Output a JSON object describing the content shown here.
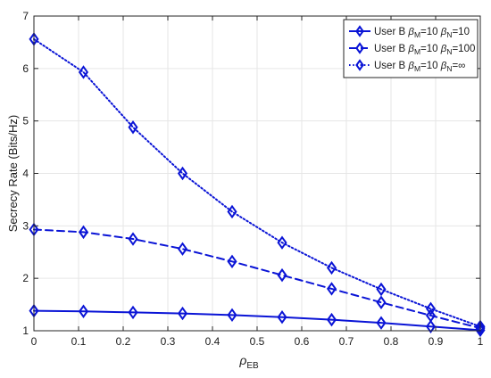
{
  "chart_data": {
    "type": "line",
    "xlabel_main": "ρ",
    "xlabel_sub": "EB",
    "ylabel": "Secrecy Rate (Bits/Hz)",
    "xlim": [
      0,
      1
    ],
    "ylim": [
      1,
      7
    ],
    "grid": true,
    "legend_position": "top-right",
    "x_ticks": [
      "0",
      "0.1",
      "0.2",
      "0.3",
      "0.4",
      "0.5",
      "0.6",
      "0.7",
      "0.8",
      "0.9",
      "1"
    ],
    "y_ticks": [
      "1",
      "2",
      "3",
      "4",
      "5",
      "6",
      "7"
    ],
    "x": [
      0,
      0.111,
      0.222,
      0.333,
      0.444,
      0.556,
      0.667,
      0.778,
      0.889,
      1.0
    ],
    "series": [
      {
        "name_user": "User B",
        "name_beta_m": "β",
        "name_beta_m_sub": "M",
        "name_beta_m_value": "=10",
        "name_beta_n": "β",
        "name_beta_n_sub": "N",
        "name_beta_n_value": "=10",
        "color": "#0a14d6",
        "style": "solid",
        "marker": "diamond",
        "values": [
          1.38,
          1.37,
          1.35,
          1.33,
          1.3,
          1.26,
          1.21,
          1.15,
          1.08,
          1.01
        ]
      },
      {
        "name_user": "User B",
        "name_beta_m": "β",
        "name_beta_m_sub": "M",
        "name_beta_m_value": "=10",
        "name_beta_n": "β",
        "name_beta_n_sub": "N",
        "name_beta_n_value": "=100",
        "color": "#0a14d6",
        "style": "dashed",
        "marker": "diamond",
        "values": [
          2.93,
          2.88,
          2.75,
          2.56,
          2.32,
          2.06,
          1.8,
          1.54,
          1.29,
          1.05
        ]
      },
      {
        "name_user": "User B",
        "name_beta_m": "β",
        "name_beta_m_sub": "M",
        "name_beta_m_value": "=10",
        "name_beta_n": "β",
        "name_beta_n_sub": "N",
        "name_beta_n_value": "=∞",
        "color": "#0a14d6",
        "style": "dotted",
        "marker": "diamond",
        "values": [
          6.56,
          5.93,
          4.88,
          4.0,
          3.27,
          2.68,
          2.2,
          1.79,
          1.42,
          1.08
        ]
      }
    ]
  }
}
